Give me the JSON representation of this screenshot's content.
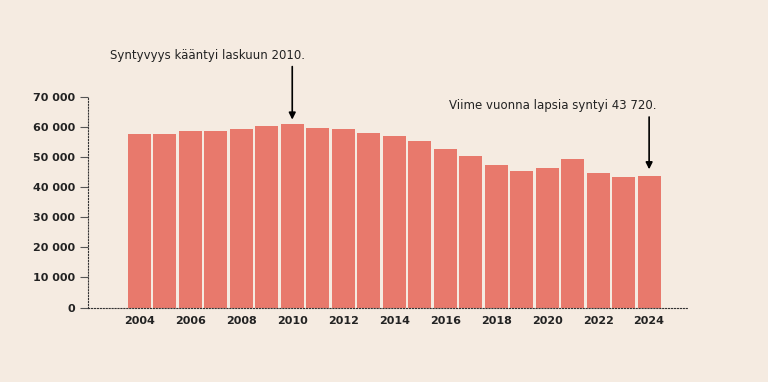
{
  "chart_data": {
    "type": "bar",
    "categories": [
      "2004",
      null,
      "2006",
      null,
      "2008",
      null,
      "2010",
      null,
      "2012",
      null,
      "2014",
      null,
      "2016",
      null,
      "2018",
      null,
      "2020",
      null,
      "2022",
      null,
      "2024"
    ],
    "values": [
      57758,
      57745,
      58840,
      58729,
      59530,
      60430,
      60980,
      59961,
      59493,
      58134,
      57232,
      55472,
      52814,
      50321,
      47577,
      45613,
      46463,
      49594,
      44951,
      43383,
      43720
    ],
    "color": "#e8796c",
    "ylim": [
      0,
      70000
    ],
    "yticks": [
      0,
      {
        "value": 10000,
        "label": "10 000"
      },
      {
        "value": 20000,
        "label": "20 000"
      },
      {
        "value": 30000,
        "label": "30 000"
      },
      {
        "value": 40000,
        "label": "40 000"
      },
      {
        "value": 50000,
        "label": "50 000"
      },
      {
        "value": 60000,
        "label": "60 000"
      },
      {
        "value": 70000,
        "label": "70 000"
      }
    ],
    "grid": false,
    "annotations": [
      {
        "text": "Syntyvyys kääntyi laskuun 2010.",
        "category": "2010"
      },
      {
        "text": "Viime vuonna lapsia syntyi 43 720.",
        "category": "2024"
      }
    ]
  }
}
